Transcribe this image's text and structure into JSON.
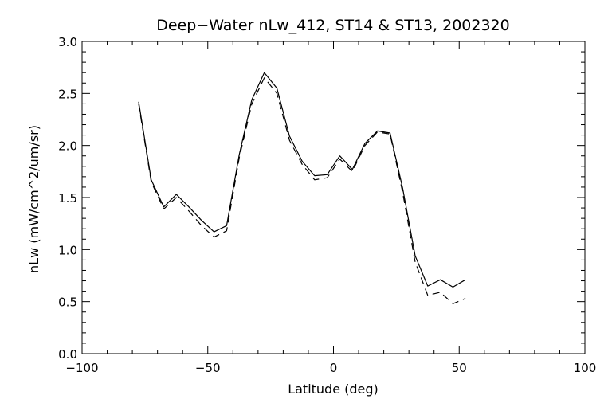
{
  "chart_data": {
    "type": "line",
    "title": "Deep−Water nLw_412, ST14 & ST13, 2002320",
    "xlabel": "Latitude (deg)",
    "ylabel": "nLw (mW/cm^2/um/sr)",
    "xlim": [
      -100,
      100
    ],
    "ylim": [
      0.0,
      3.0
    ],
    "xticks": [
      -100,
      -50,
      0,
      50,
      100
    ],
    "xtick_labels": [
      "−100",
      "−50",
      "0",
      "50",
      "100"
    ],
    "yticks": [
      0.0,
      0.5,
      1.0,
      1.5,
      2.0,
      2.5,
      3.0
    ],
    "ytick_labels": [
      "0.0",
      "0.5",
      "1.0",
      "1.5",
      "2.0",
      "2.5",
      "3.0"
    ],
    "grid": false,
    "series": [
      {
        "line_style": "solid",
        "color": "#000000",
        "x": [
          -77.5,
          -72.5,
          -67.5,
          -62.5,
          -57.5,
          -52.5,
          -47.5,
          -42.5,
          -37.5,
          -32.5,
          -27.5,
          -22.5,
          -17.5,
          -12.5,
          -7.5,
          -2.5,
          2.5,
          7.5,
          12.5,
          17.5,
          22.5,
          27.5,
          32.5,
          37.5,
          42.5,
          47.5,
          52.5
        ],
        "y": [
          2.42,
          1.67,
          1.41,
          1.53,
          1.41,
          1.28,
          1.17,
          1.23,
          1.91,
          2.44,
          2.7,
          2.55,
          2.09,
          1.85,
          1.71,
          1.72,
          1.9,
          1.77,
          2.02,
          2.14,
          2.12,
          1.59,
          0.94,
          0.65,
          0.71,
          0.64,
          0.71
        ]
      },
      {
        "line_style": "dashed",
        "color": "#000000",
        "x": [
          -77.5,
          -72.5,
          -67.5,
          -62.5,
          -57.5,
          -52.5,
          -47.5,
          -42.5,
          -37.5,
          -32.5,
          -27.5,
          -22.5,
          -17.5,
          -12.5,
          -7.5,
          -2.5,
          2.5,
          7.5,
          12.5,
          17.5,
          22.5,
          27.5,
          32.5,
          37.5,
          42.5,
          47.5,
          52.5
        ],
        "y": [
          2.4,
          1.65,
          1.39,
          1.5,
          1.37,
          1.23,
          1.12,
          1.18,
          1.88,
          2.4,
          2.65,
          2.5,
          2.05,
          1.82,
          1.67,
          1.69,
          1.87,
          1.75,
          2.0,
          2.13,
          2.11,
          1.55,
          0.88,
          0.56,
          0.59,
          0.48,
          0.53
        ]
      }
    ]
  }
}
